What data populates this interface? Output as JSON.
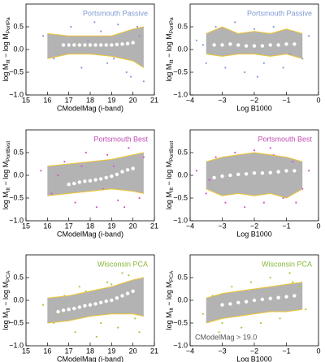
{
  "chart_data": [
    {
      "type": "scatter",
      "title": "Portsmouth Passive",
      "title_color": "#7f9bd3",
      "x_label": "CModelMag (i-band)",
      "y_label": [
        "log M",
        "Ilt",
        " − log M",
        "PortPa"
      ],
      "xlim": [
        15,
        21
      ],
      "xticks": [
        15,
        16,
        17,
        18,
        19,
        20,
        21
      ],
      "ylim": [
        -1,
        1
      ],
      "yticks": [
        {
          "value": -1,
          "label": "−1.0"
        },
        {
          "value": -0.5,
          "label": "−0.5"
        },
        {
          "value": 0,
          "label": "0.0"
        },
        {
          "value": 0.5,
          "label": "0.5"
        }
      ],
      "series": [
        {
          "type": "scatter",
          "color": "#7f9bd3",
          "x": [
            15.8,
            16.3,
            17.1,
            17.6,
            18.2,
            18.8,
            19.3,
            19.7,
            20.2,
            20.5,
            16.9,
            18.5,
            19.9,
            20.3,
            17.9,
            19.1
          ],
          "values": [
            0.3,
            -0.2,
            0.5,
            -0.4,
            0.6,
            -0.3,
            0.55,
            -0.5,
            0.5,
            -0.7,
            0.1,
            0.4,
            -0.6,
            0.3,
            0.2,
            -0.2
          ]
        },
        {
          "type": "line",
          "color": "#f0c630",
          "x": [
            16,
            17,
            18,
            19,
            20,
            20.5
          ],
          "values": [
            0.35,
            0.3,
            0.3,
            0.3,
            0.45,
            0.5
          ]
        },
        {
          "type": "line",
          "color": "#f0c630",
          "x": [
            16,
            17,
            18,
            19,
            20,
            20.5
          ],
          "values": [
            -0.2,
            -0.1,
            -0.1,
            -0.15,
            -0.25,
            -0.4
          ]
        },
        {
          "type": "scatter",
          "color": "#ffffff",
          "x": [
            16.75,
            17,
            17.25,
            17.5,
            17.75,
            18,
            18.25,
            18.5,
            18.75,
            19,
            19.25,
            19.5,
            19.75,
            20
          ],
          "values": [
            0.1,
            0.1,
            0.1,
            0.1,
            0.1,
            0.1,
            0.1,
            0.1,
            0.1,
            0.1,
            0.11,
            0.12,
            0.13,
            0.15
          ]
        }
      ]
    },
    {
      "type": "scatter",
      "title": "Portsmouth Passive",
      "title_color": "#7f9bd3",
      "x_label": "Log B1000",
      "y_label": [
        "log M",
        "Ilt",
        " − log M",
        "PortPa"
      ],
      "xlim": [
        -4,
        0
      ],
      "xticks": [
        {
          "value": -4,
          "label": "−4"
        },
        {
          "value": -3,
          "label": "−3"
        },
        {
          "value": -2,
          "label": "−2"
        },
        {
          "value": -1,
          "label": "−1"
        },
        0
      ],
      "ylim": [
        -1,
        1
      ],
      "yticks": [
        {
          "value": -1,
          "label": "−1.0"
        },
        {
          "value": -0.5,
          "label": "−0.5"
        },
        {
          "value": 0,
          "label": "0.0"
        },
        {
          "value": 0.5,
          "label": "0.5"
        }
      ],
      "series": [
        {
          "type": "scatter",
          "color": "#7f9bd3",
          "x": [
            -3.8,
            -3.5,
            -3.2,
            -2.9,
            -2.6,
            -2.3,
            -2,
            -1.7,
            -1.4,
            -1.1,
            -0.8,
            -0.5,
            -0.3,
            -3.6,
            -1.9,
            -0.9
          ],
          "values": [
            0.2,
            -0.3,
            0.5,
            -0.4,
            0.6,
            -0.5,
            0.45,
            -0.3,
            0.5,
            -0.4,
            0.4,
            -0.2,
            0.3,
            0.1,
            -0.6,
            -0.1
          ]
        },
        {
          "type": "line",
          "color": "#f0c630",
          "x": [
            -3.5,
            -3,
            -2.5,
            -2,
            -1.5,
            -1,
            -0.5
          ],
          "values": [
            0.35,
            0.5,
            0.35,
            0.4,
            0.35,
            0.45,
            0.35
          ]
        },
        {
          "type": "line",
          "color": "#f0c630",
          "x": [
            -3.5,
            -3,
            -2.5,
            -2,
            -1.5,
            -1,
            -0.5
          ],
          "values": [
            -0.1,
            -0.15,
            -0.1,
            -0.1,
            -0.15,
            -0.1,
            -0.2
          ]
        },
        {
          "type": "scatter",
          "color": "#ffffff",
          "x": [
            -3.25,
            -3,
            -2.75,
            -2.5,
            -2.25,
            -2,
            -1.75,
            -1.5,
            -1.25,
            -1,
            -0.75
          ],
          "values": [
            0.1,
            0.1,
            0.12,
            0.1,
            0.08,
            0.08,
            0.08,
            0.1,
            0.1,
            0.12,
            0.12
          ]
        }
      ]
    },
    {
      "type": "scatter",
      "title": "Portsmouth Best",
      "title_color": "#c04fb4",
      "x_label": "CModelMag (i-band)",
      "y_label": [
        "log M",
        "Ilt",
        " − log M",
        "PortBest"
      ],
      "xlim": [
        15,
        21
      ],
      "xticks": [
        15,
        16,
        17,
        18,
        19,
        20,
        21
      ],
      "ylim": [
        -1,
        1
      ],
      "yticks": [
        {
          "value": -1,
          "label": "−1.0"
        },
        {
          "value": -0.5,
          "label": "−0.5"
        },
        {
          "value": 0,
          "label": "0.0"
        },
        {
          "value": 0.5,
          "label": "0.5"
        }
      ],
      "series": [
        {
          "type": "scatter",
          "color": "#d654c8",
          "x": [
            15.7,
            16.2,
            16.8,
            17.3,
            17.8,
            18.3,
            18.8,
            19.3,
            19.8,
            20.3,
            16.5,
            17.6,
            18.6,
            19.6,
            20.5,
            19.1
          ],
          "values": [
            0.1,
            -0.4,
            0.3,
            -0.6,
            0.5,
            -0.7,
            0.45,
            -0.55,
            0.6,
            -0.5,
            0,
            0.2,
            -0.3,
            -0.7,
            0.4,
            0.2
          ]
        },
        {
          "type": "line",
          "color": "#f0c630",
          "x": [
            16,
            17,
            18,
            19,
            20,
            20.5
          ],
          "values": [
            0.2,
            0.25,
            0.3,
            0.35,
            0.45,
            0.5
          ]
        },
        {
          "type": "line",
          "color": "#f0c630",
          "x": [
            16,
            17,
            18,
            19,
            20,
            20.5
          ],
          "values": [
            -0.45,
            -0.4,
            -0.35,
            -0.3,
            -0.35,
            -0.4
          ]
        },
        {
          "type": "scatter",
          "color": "#ffffff",
          "x": [
            17,
            17.25,
            17.5,
            17.75,
            18,
            18.25,
            18.5,
            18.75,
            19,
            19.25,
            19.5,
            19.75,
            20
          ],
          "values": [
            -0.2,
            -0.18,
            -0.15,
            -0.13,
            -0.12,
            -0.1,
            -0.08,
            -0.05,
            -0.02,
            0.02,
            0.08,
            0.12,
            0.15
          ]
        }
      ]
    },
    {
      "type": "scatter",
      "title": "Portsmouth Best",
      "title_color": "#c04fb4",
      "x_label": "Log B1000",
      "y_label": [
        "log M",
        "Ilt",
        " − log M",
        "PortBest"
      ],
      "xlim": [
        -4,
        0
      ],
      "xticks": [
        {
          "value": -4,
          "label": "−4"
        },
        {
          "value": -3,
          "label": "−3"
        },
        {
          "value": -2,
          "label": "−2"
        },
        {
          "value": -1,
          "label": "−1"
        },
        0
      ],
      "ylim": [
        -1,
        1
      ],
      "yticks": [
        {
          "value": -1,
          "label": "−1.0"
        },
        {
          "value": -0.5,
          "label": "−0.5"
        },
        {
          "value": 0,
          "label": "0.0"
        },
        {
          "value": 0.5,
          "label": "0.5"
        }
      ],
      "series": [
        {
          "type": "scatter",
          "color": "#d654c8",
          "x": [
            -3.8,
            -3.5,
            -3.2,
            -2.9,
            -2.6,
            -2.3,
            -2,
            -1.7,
            -1.4,
            -1.1,
            -0.8,
            -0.5,
            -0.3,
            -3.4,
            -1.5,
            -0.7
          ],
          "values": [
            0.1,
            -0.4,
            0.4,
            -0.6,
            0.5,
            -0.7,
            0.55,
            -0.6,
            0.45,
            -0.5,
            0.3,
            -0.3,
            0.1,
            -0.1,
            0.6,
            -0.6
          ]
        },
        {
          "type": "line",
          "color": "#f0c630",
          "x": [
            -3.5,
            -3,
            -2.5,
            -2,
            -1.5,
            -1,
            -0.5
          ],
          "values": [
            0.3,
            0.4,
            0.45,
            0.5,
            0.45,
            0.4,
            0.3
          ]
        },
        {
          "type": "line",
          "color": "#f0c630",
          "x": [
            -3.5,
            -3,
            -2.5,
            -2,
            -1.5,
            -1,
            -0.5
          ],
          "values": [
            -0.3,
            -0.45,
            -0.4,
            -0.45,
            -0.4,
            -0.5,
            -0.3
          ]
        },
        {
          "type": "scatter",
          "color": "#ffffff",
          "x": [
            -3.25,
            -3,
            -2.75,
            -2.5,
            -2.25,
            -2,
            -1.75,
            -1.5,
            -1.25,
            -1,
            -0.75
          ],
          "values": [
            -0.05,
            -0.02,
            0,
            0.02,
            0.03,
            0.05,
            0.05,
            0.06,
            0.08,
            0.1,
            0.1
          ]
        }
      ]
    },
    {
      "type": "scatter",
      "title": "Wisconsin PCA",
      "title_color": "#86b83a",
      "x_label": "CModelMag (i-band)",
      "y_label": [
        "log M",
        "Ilt",
        " − log M",
        "PCA"
      ],
      "xlim": [
        15,
        21
      ],
      "xticks": [
        15,
        16,
        17,
        18,
        19,
        20,
        21
      ],
      "ylim": [
        -1,
        1
      ],
      "yticks": [
        {
          "value": -1,
          "label": "−1.0"
        },
        {
          "value": -0.5,
          "label": "−0.5"
        },
        {
          "value": 0,
          "label": "0.0"
        },
        {
          "value": 0.5,
          "label": "0.5"
        }
      ],
      "series": [
        {
          "type": "scatter",
          "color": "#9ccf3c",
          "x": [
            15.8,
            16.3,
            16.8,
            17.3,
            17.8,
            18.3,
            18.8,
            19.3,
            19.8,
            20.3,
            16.6,
            17.5,
            18.5,
            19.5,
            20.1,
            19
          ],
          "values": [
            -0.1,
            -0.5,
            0.1,
            -0.7,
            0.2,
            -0.8,
            0.4,
            -0.6,
            0.55,
            -0.7,
            -0.3,
            0.3,
            -0.5,
            0.6,
            -0.4,
            0.35
          ]
        },
        {
          "type": "line",
          "color": "#f0c630",
          "x": [
            16,
            17,
            18,
            19,
            20,
            20.5
          ],
          "values": [
            0.05,
            0.1,
            0.2,
            0.3,
            0.45,
            0.5
          ]
        },
        {
          "type": "line",
          "color": "#f0c630",
          "x": [
            16,
            17,
            18,
            19,
            20,
            20.5
          ],
          "values": [
            -0.5,
            -0.45,
            -0.35,
            -0.3,
            -0.3,
            -0.35
          ]
        },
        {
          "type": "scatter",
          "color": "#ffffff",
          "x": [
            16.5,
            16.75,
            17,
            17.25,
            17.5,
            17.75,
            18,
            18.25,
            18.5,
            18.75,
            19,
            19.25,
            19.5,
            19.75,
            20
          ],
          "values": [
            -0.25,
            -0.22,
            -0.2,
            -0.18,
            -0.15,
            -0.12,
            -0.1,
            -0.08,
            -0.05,
            -0.02,
            0,
            0.05,
            0.1,
            0.15,
            0.2
          ]
        }
      ]
    },
    {
      "type": "scatter",
      "title": "Wisconsin PCA",
      "title_color": "#86b83a",
      "x_label": "Log B1000",
      "y_label": [
        "log M",
        "Ilt",
        " − log M",
        "PCA"
      ],
      "annotation": "CModelMag > 19.0",
      "xlim": [
        -4,
        0
      ],
      "xticks": [
        {
          "value": -4,
          "label": "−4"
        },
        {
          "value": -3,
          "label": "−3"
        },
        {
          "value": -2,
          "label": "−2"
        },
        {
          "value": -1,
          "label": "−1"
        },
        0
      ],
      "ylim": [
        -1,
        1
      ],
      "yticks": [
        {
          "value": -1,
          "label": "−1.0"
        },
        {
          "value": -0.5,
          "label": "−0.5"
        },
        {
          "value": 0,
          "label": "0.0"
        },
        {
          "value": 0.5,
          "label": "0.5"
        }
      ],
      "series": [
        {
          "type": "scatter",
          "color": "#9ccf3c",
          "x": [
            -3.6,
            -3.3,
            -3,
            -2.7,
            -2.4,
            -2.1,
            -1.8,
            -1.5,
            -1.2,
            -0.9,
            -0.6,
            -0.4,
            -3.1,
            -1.6,
            -0.8,
            -2.2
          ],
          "values": [
            -0.3,
            0.1,
            -0.5,
            0.3,
            -0.6,
            0.4,
            -0.5,
            0.5,
            -0.4,
            0.6,
            0.3,
            -0.2,
            -0.7,
            0.2,
            0.4,
            -0.2
          ]
        },
        {
          "type": "line",
          "color": "#f0c630",
          "x": [
            -3.5,
            -3,
            -2.5,
            -2,
            -1.5,
            -1,
            -0.5
          ],
          "values": [
            0.05,
            0.15,
            0.2,
            0.25,
            0.3,
            0.35,
            0.4
          ]
        },
        {
          "type": "line",
          "color": "#f0c630",
          "x": [
            -3.5,
            -3,
            -2.5,
            -2,
            -1.5,
            -1,
            -0.5
          ],
          "values": [
            -0.5,
            -0.4,
            -0.35,
            -0.3,
            -0.25,
            -0.25,
            -0.2
          ]
        },
        {
          "type": "scatter",
          "color": "#ffffff",
          "x": [
            -3,
            -2.75,
            -2.5,
            -2.25,
            -2,
            -1.75,
            -1.5,
            -1.25,
            -1,
            -0.75
          ],
          "values": [
            -0.1,
            -0.08,
            -0.05,
            -0.03,
            0,
            0.02,
            0.04,
            0.06,
            0.08,
            0.1
          ]
        }
      ]
    }
  ]
}
